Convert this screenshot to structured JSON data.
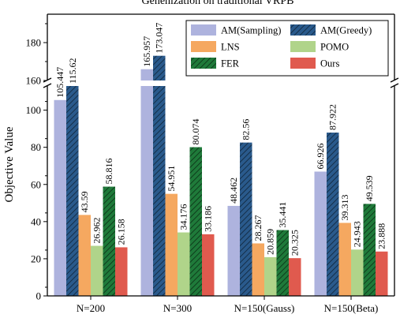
{
  "chart_data": {
    "type": "bar",
    "title": "Genenization on traditional VRPB",
    "ylabel": "Objective Value",
    "xlabel": "",
    "categories": [
      "N=200",
      "N=300",
      "N=150(Gauss)",
      "N=150(Beta)"
    ],
    "series": [
      {
        "name": "AM(Sampling)",
        "color": "#aeb3de",
        "hatch": false,
        "values": [
          105.447,
          165.957,
          48.462,
          66.926
        ],
        "labels": [
          "105.447",
          "165.957",
          "48.462",
          "66.926"
        ]
      },
      {
        "name": "AM(Greedy)",
        "color": "#2a5a8c",
        "hatch": true,
        "values": [
          115.62,
          173.047,
          82.56,
          87.922
        ],
        "labels": [
          "115.62",
          "173.047",
          "82.56",
          "87.922"
        ]
      },
      {
        "name": "LNS",
        "color": "#f5a860",
        "hatch": false,
        "values": [
          43.59,
          54.951,
          28.267,
          39.313
        ],
        "labels": [
          "43.59",
          "54.951",
          "28.267",
          "39.313"
        ]
      },
      {
        "name": "POMO",
        "color": "#b0d48a",
        "hatch": false,
        "values": [
          26.962,
          34.176,
          20.859,
          24.943
        ],
        "labels": [
          "26.962",
          "34.176",
          "20.859",
          "24.943"
        ]
      },
      {
        "name": "FER",
        "color": "#1f7a3a",
        "hatch": true,
        "values": [
          58.816,
          80.074,
          35.441,
          49.539
        ],
        "labels": [
          "58.816",
          "80.074",
          "35.441",
          "49.539"
        ]
      },
      {
        "name": "Ours",
        "color": "#e05a4e",
        "hatch": false,
        "values": [
          26.158,
          33.186,
          20.325,
          23.888
        ],
        "labels": [
          "26.158",
          "33.186",
          "20.325",
          "23.888"
        ]
      }
    ],
    "axis_break": {
      "lower": [
        0,
        113
      ],
      "upper": [
        160,
        195
      ]
    },
    "yticks_lower": [
      "0",
      "20",
      "40",
      "60",
      "80",
      "100"
    ],
    "yticks_upper": [
      "160",
      "180"
    ],
    "legend_order": [
      "AM(Sampling)",
      "AM(Greedy)",
      "LNS",
      "POMO",
      "FER",
      "Ours"
    ],
    "legend_position": "top-right",
    "grid": false
  }
}
